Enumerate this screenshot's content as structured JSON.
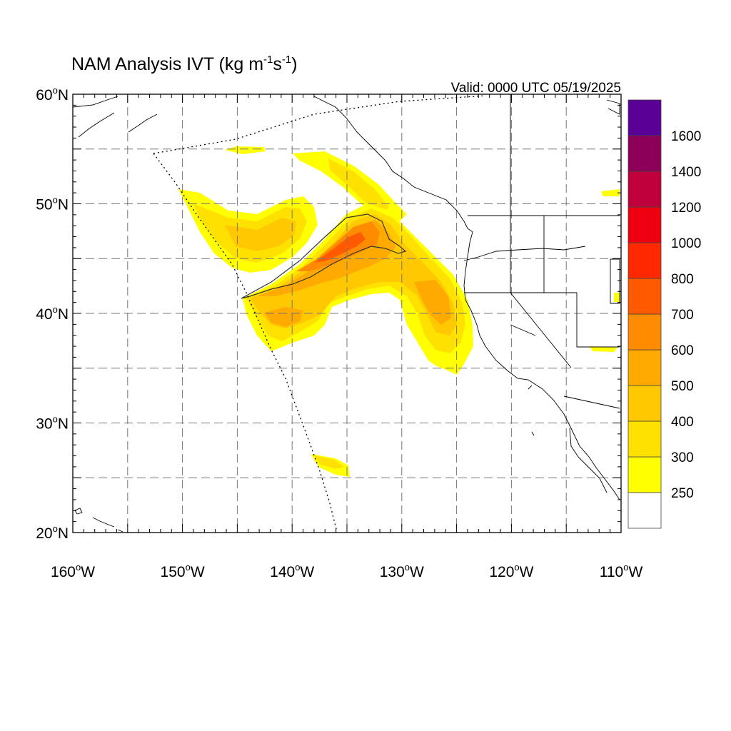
{
  "title": {
    "main": "NAM Analysis IVT (kg m",
    "sup1": "-1",
    "mid": "s",
    "sup2": "-1",
    "end": ")"
  },
  "valid": "Valid: 0000 UTC 05/19/2025",
  "lat_labels": [
    "20",
    "30",
    "40",
    "50",
    "60"
  ],
  "lon_labels": [
    "160",
    "150",
    "140",
    "130",
    "120",
    "110"
  ],
  "lat_hemisphere": "N",
  "lon_hemisphere": "W",
  "degree_symbol": "o",
  "colorbar": {
    "labels": [
      "250",
      "300",
      "400",
      "500",
      "600",
      "700",
      "800",
      "1000",
      "1200",
      "1400",
      "1600"
    ],
    "colors": [
      "#ffffff",
      "#ffff00",
      "#ffe100",
      "#ffc800",
      "#ffaa00",
      "#ff8c00",
      "#ff5a00",
      "#ff2800",
      "#ee0011",
      "#c0003c",
      "#8c005a",
      "#5a0096"
    ]
  },
  "ivt_colors": {
    "c250": "#ffff00",
    "c300": "#ffe100",
    "c400": "#ffc800",
    "c500": "#ffaa00",
    "c600": "#ff8c00",
    "c700": "#ff5a00"
  }
}
